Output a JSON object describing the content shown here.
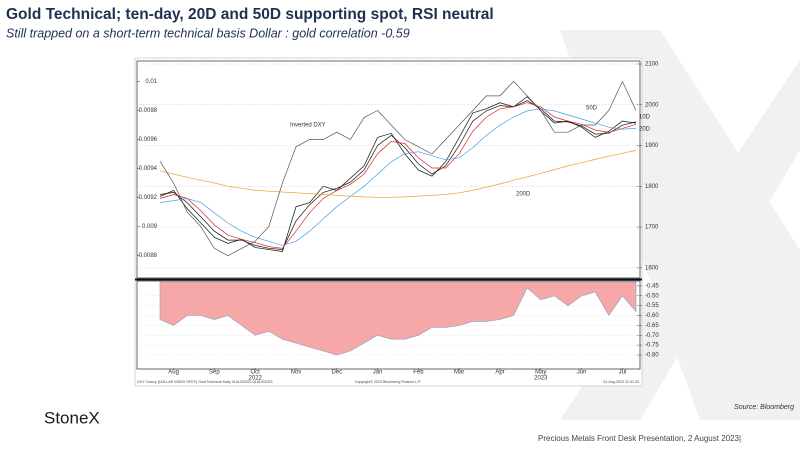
{
  "header": {
    "title": "Gold Technical; ten-day, 20D and 50D supporting spot, RSI neutral",
    "subtitle": "Still trapped on a short-term technical basis Dollar : gold correlation -0.59"
  },
  "chart_data": [
    {
      "type": "line",
      "annotation": "Inverted DXY",
      "ylim": [
        0.00866,
        0.01012
      ],
      "yticks": [
        0.0088,
        0.009,
        0.0092,
        0.0094,
        0.0096,
        0.0098,
        0.01
      ],
      "y2lim": [
        1580,
        2100
      ],
      "y2ticks": [
        1600,
        1700,
        1800,
        1900,
        2000,
        2100
      ],
      "grid": true,
      "series": [
        {
          "color": "#2b2b2b",
          "axis": "y2",
          "values": [
            1775,
            1790,
            1745,
            1710,
            1675,
            1660,
            1670,
            1650,
            1645,
            1640,
            1750,
            1760,
            1800,
            1790,
            1820,
            1850,
            1920,
            1930,
            1880,
            1840,
            1825,
            1860,
            1920,
            1980,
            1990,
            2005,
            1995,
            2020,
            1985,
            1955,
            1960,
            1945,
            1920,
            1935,
            1960,
            1955
          ]
        },
        {
          "name": "10D",
          "color": "#111111",
          "axis": "y2",
          "values": [
            1780,
            1785,
            1760,
            1725,
            1690,
            1668,
            1668,
            1655,
            1648,
            1645,
            1715,
            1755,
            1785,
            1795,
            1810,
            1840,
            1900,
            1925,
            1895,
            1855,
            1830,
            1850,
            1900,
            1960,
            1985,
            1998,
            1995,
            2010,
            1990,
            1960,
            1958,
            1948,
            1928,
            1930,
            1950,
            1958
          ]
        },
        {
          "name": "20D",
          "color": "#d62728",
          "axis": "y2",
          "values": [
            1770,
            1780,
            1770,
            1740,
            1705,
            1680,
            1670,
            1662,
            1652,
            1648,
            1690,
            1735,
            1770,
            1790,
            1805,
            1830,
            1880,
            1910,
            1905,
            1870,
            1845,
            1845,
            1880,
            1935,
            1970,
            1990,
            1995,
            2005,
            1995,
            1970,
            1960,
            1952,
            1938,
            1932,
            1942,
            1952
          ]
        },
        {
          "name": "50D",
          "color": "#4a9fe0",
          "axis": "y2",
          "values": [
            1760,
            1765,
            1770,
            1760,
            1735,
            1710,
            1690,
            1675,
            1665,
            1655,
            1665,
            1690,
            1720,
            1750,
            1775,
            1800,
            1830,
            1860,
            1880,
            1885,
            1875,
            1865,
            1870,
            1895,
            1925,
            1950,
            1970,
            1985,
            1990,
            1985,
            1975,
            1965,
            1955,
            1945,
            1940,
            1942
          ]
        },
        {
          "name": "200D",
          "color": "#f0a030",
          "axis": "y2",
          "values": [
            1838,
            1830,
            1822,
            1815,
            1808,
            1800,
            1795,
            1790,
            1788,
            1786,
            1784,
            1782,
            1780,
            1778,
            1776,
            1774,
            1773,
            1773,
            1774,
            1776,
            1778,
            1780,
            1784,
            1790,
            1798,
            1806,
            1815,
            1823,
            1832,
            1841,
            1850,
            1858,
            1866,
            1874,
            1881,
            1888
          ]
        },
        {
          "color": "#555555",
          "values": [
            0.00945,
            0.0093,
            0.0091,
            0.009,
            0.00885,
            0.0088,
            0.00885,
            0.0089,
            0.009,
            0.0093,
            0.00955,
            0.0096,
            0.0096,
            0.00965,
            0.0096,
            0.00975,
            0.0098,
            0.0097,
            0.0096,
            0.00955,
            0.0095,
            0.0096,
            0.0097,
            0.0098,
            0.0099,
            0.0099,
            0.01,
            0.0099,
            0.0098,
            0.00965,
            0.00965,
            0.0097,
            0.0097,
            0.0098,
            0.01,
            0.0098
          ]
        }
      ]
    },
    {
      "type": "area",
      "categories": [
        null,
        "Aug",
        null,
        null,
        "Sep",
        null,
        null,
        "Oct",
        null,
        null,
        "Nov",
        null,
        null,
        "Dec",
        null,
        null,
        "Jan",
        null,
        null,
        "Feb",
        null,
        null,
        "Mar",
        null,
        null,
        "Apr",
        null,
        null,
        "May",
        null,
        null,
        "Jun",
        null,
        null,
        "Jul",
        null
      ],
      "years": [
        "2022",
        "2023"
      ],
      "ylim": [
        -0.866,
        -0.43
      ],
      "yticks": [
        -0.45,
        {
          "value": -0.5,
          "label": "-0.50"
        },
        -0.55,
        {
          "value": -0.6,
          "label": "-0.60"
        },
        -0.65,
        {
          "value": -0.7,
          "label": "-0.70"
        },
        -0.75,
        {
          "value": -0.8,
          "label": "-0.80"
        }
      ],
      "series": [
        {
          "color": "#f6a8a8",
          "values": [
            -0.62,
            -0.65,
            -0.6,
            -0.6,
            -0.62,
            -0.6,
            -0.65,
            -0.7,
            -0.68,
            -0.72,
            -0.74,
            -0.76,
            -0.78,
            -0.8,
            -0.78,
            -0.74,
            -0.7,
            -0.72,
            -0.72,
            -0.7,
            -0.66,
            -0.66,
            -0.65,
            -0.63,
            -0.63,
            -0.62,
            -0.6,
            -0.46,
            -0.52,
            -0.5,
            -0.55,
            -0.5,
            -0.48,
            -0.6,
            -0.5,
            -0.58
          ]
        }
      ]
    }
  ],
  "chart_footer": {
    "left": "DXY Curncy (DOLLAR INDEX SPOT) Gold Technical  Daily 01AUG2022-01AUG2023",
    "center": "Copyright© 2023 Bloomberg Finance L.P.",
    "right": "01-Aug-2023 22:41:33"
  },
  "footer": {
    "logo": "StoneX",
    "source": "Source: Bloomberg",
    "presentation": "Precious Metals Front Desk Presentation, 2 August 2023|"
  }
}
